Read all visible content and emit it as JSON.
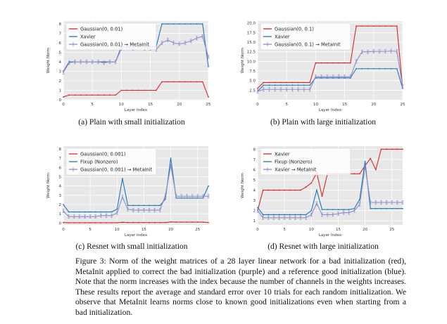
{
  "caption": "Figure 3: Norm of the weight matrices of a 28 layer linear network for a bad initialization (red), MetaInit applied to correct the bad initialization (purple) and a reference good initialization (blue). Note that the norm increases with the index because the number of channels in the weights increases. These results report the average and standard error over 10 trials for each random initialization. We observe that MetaInit learns norms close to known good initializations even when starting from a bad initialization.",
  "colors": {
    "red": "#d62728",
    "blue": "#1f77b4",
    "purple": "#8c8cc8",
    "background": "#e8e8e8"
  },
  "chart_data": [
    {
      "type": "line",
      "subcaption": "(a) Plain with small initialization",
      "xlabel": "Layer Index",
      "ylabel": "Weight Norm",
      "xlim": [
        0,
        25
      ],
      "ylim": [
        0,
        8.3
      ],
      "xticks": [
        0,
        5,
        10,
        15,
        20,
        25
      ],
      "yticks": [
        0,
        1,
        2,
        3,
        4,
        5,
        6,
        7,
        8
      ],
      "legend_position": "top-left",
      "x": [
        0,
        1,
        2,
        3,
        4,
        5,
        6,
        7,
        8,
        9,
        10,
        11,
        12,
        13,
        14,
        15,
        16,
        17,
        18,
        19,
        20,
        21,
        22,
        23,
        24,
        25
      ],
      "series": [
        {
          "name": "Gaussian(0, 0.01)",
          "color": "#d62728",
          "values": [
            0.3,
            0.5,
            0.5,
            0.5,
            0.5,
            0.5,
            0.5,
            0.5,
            0.5,
            0.5,
            1.0,
            1.0,
            1.0,
            1.0,
            1.0,
            1.0,
            1.0,
            1.9,
            1.9,
            1.9,
            1.9,
            1.9,
            1.9,
            1.9,
            1.9,
            0.3
          ]
        },
        {
          "name": "Xavier",
          "color": "#1f77b4",
          "values": [
            3.0,
            4.0,
            4.0,
            4.0,
            4.0,
            4.0,
            4.0,
            4.0,
            4.0,
            4.0,
            5.6,
            5.6,
            5.6,
            5.6,
            5.6,
            5.6,
            5.6,
            8.0,
            8.0,
            8.0,
            8.0,
            8.0,
            8.0,
            8.0,
            8.0,
            3.5
          ]
        },
        {
          "name": "Gaussian(0, 0.01) → MetaInit",
          "color": "#8c8cc8",
          "errorbars": true,
          "values": [
            2.9,
            3.9,
            4.0,
            4.0,
            4.0,
            4.0,
            4.0,
            3.9,
            4.0,
            4.0,
            5.4,
            5.5,
            5.4,
            5.5,
            5.4,
            5.4,
            5.3,
            6.0,
            6.3,
            6.0,
            5.9,
            6.0,
            6.2,
            6.5,
            6.7,
            4.5
          ]
        }
      ]
    },
    {
      "type": "line",
      "subcaption": "(b) Plain with large initialization",
      "xlabel": "Layer Index",
      "ylabel": "Weight Norm",
      "xlim": [
        0,
        25
      ],
      "ylim": [
        0,
        20.5
      ],
      "xticks": [
        0,
        5,
        10,
        15,
        20,
        25
      ],
      "yticks": [
        2.5,
        5.0,
        7.5,
        10.0,
        12.5,
        15.0,
        17.5,
        20.0
      ],
      "ytick_labels": [
        "2.5",
        "5.0",
        "7.5",
        "10.0",
        "12.5",
        "15.0",
        "17.5",
        "20.0"
      ],
      "legend_position": "top-left",
      "x": [
        0,
        1,
        2,
        3,
        4,
        5,
        6,
        7,
        8,
        9,
        10,
        11,
        12,
        13,
        14,
        15,
        16,
        17,
        18,
        19,
        20,
        21,
        22,
        23,
        24,
        25
      ],
      "series": [
        {
          "name": "Gaussian(0, 0.1)",
          "color": "#d62728",
          "values": [
            3.0,
            4.5,
            4.5,
            4.5,
            4.5,
            4.5,
            4.5,
            4.5,
            4.5,
            4.5,
            9.6,
            9.6,
            9.6,
            9.6,
            9.6,
            9.6,
            9.6,
            19.2,
            19.2,
            19.2,
            19.2,
            19.2,
            19.2,
            19.2,
            19.2,
            3.0
          ]
        },
        {
          "name": "Xavier",
          "color": "#1f77b4",
          "values": [
            2.2,
            3.8,
            3.8,
            3.8,
            3.8,
            3.8,
            3.8,
            3.8,
            3.8,
            3.8,
            5.7,
            5.7,
            5.7,
            5.7,
            5.7,
            5.7,
            5.7,
            8.1,
            8.1,
            8.1,
            8.1,
            8.1,
            8.1,
            8.1,
            8.1,
            3.0
          ]
        },
        {
          "name": "Gaussian(0, 0.1) → MetaInit",
          "color": "#8c8cc8",
          "errorbars": true,
          "values": [
            2.2,
            2.7,
            2.7,
            2.7,
            2.7,
            2.7,
            2.7,
            2.7,
            2.7,
            2.7,
            6.0,
            6.0,
            6.0,
            6.0,
            6.0,
            6.0,
            6.0,
            10.0,
            12.5,
            12.5,
            12.6,
            12.6,
            12.6,
            12.7,
            12.6,
            3.5
          ]
        }
      ]
    },
    {
      "type": "line",
      "subcaption": "(c) Resnet with small initialization",
      "xlabel": "Layer Index",
      "ylabel": "Weight Norm",
      "xlim": [
        0,
        27
      ],
      "ylim": [
        -0.2,
        8.3
      ],
      "xticks": [
        0,
        5,
        10,
        15,
        20,
        25
      ],
      "yticks": [
        0,
        1,
        2,
        3,
        4,
        5,
        6,
        7,
        8
      ],
      "legend_position": "top-left",
      "x": [
        0,
        1,
        2,
        3,
        4,
        5,
        6,
        7,
        8,
        9,
        10,
        11,
        12,
        13,
        14,
        15,
        16,
        17,
        18,
        19,
        20,
        21,
        22,
        23,
        24,
        25,
        26,
        27
      ],
      "series": [
        {
          "name": "Gaussian(0, 0.001)",
          "color": "#d62728",
          "values": [
            0.05,
            0.03,
            0.03,
            0.03,
            0.03,
            0.03,
            0.03,
            0.03,
            0.03,
            0.03,
            0.03,
            0.08,
            0.05,
            0.05,
            0.05,
            0.05,
            0.05,
            0.05,
            0.05,
            0.05,
            0.12,
            0.1,
            0.1,
            0.1,
            0.1,
            0.1,
            0.1,
            0.05
          ]
        },
        {
          "name": "Fixup (Nonzero)",
          "color": "#1f77b4",
          "values": [
            2.0,
            1.2,
            1.2,
            1.2,
            1.2,
            1.2,
            1.2,
            1.2,
            1.2,
            1.2,
            1.5,
            4.8,
            1.9,
            1.9,
            1.9,
            1.9,
            1.9,
            1.9,
            1.9,
            2.6,
            7.0,
            2.7,
            2.7,
            2.7,
            2.7,
            2.7,
            2.7,
            4.0
          ]
        },
        {
          "name": "Gaussian(0, 0.001) → MetaInit",
          "color": "#8c8cc8",
          "errorbars": true,
          "values": [
            1.3,
            0.7,
            0.7,
            0.7,
            0.7,
            0.7,
            0.7,
            0.8,
            0.8,
            0.8,
            1.1,
            2.8,
            1.5,
            1.4,
            1.4,
            1.4,
            1.4,
            1.4,
            1.4,
            3.0,
            6.2,
            2.9,
            2.9,
            2.9,
            2.9,
            2.9,
            2.9,
            2.9
          ]
        }
      ]
    },
    {
      "type": "line",
      "subcaption": "(d) Resnet with large initialization",
      "xlabel": "Layer Index",
      "ylabel": "Weight Norm",
      "xlim": [
        0,
        27
      ],
      "ylim": [
        0.6,
        8.3
      ],
      "xticks": [
        0,
        5,
        10,
        15,
        20,
        25
      ],
      "yticks": [
        1,
        2,
        3,
        4,
        5,
        6,
        7,
        8
      ],
      "legend_position": "top-left",
      "x": [
        0,
        1,
        2,
        3,
        4,
        5,
        6,
        7,
        8,
        9,
        10,
        11,
        12,
        13,
        14,
        15,
        16,
        17,
        18,
        19,
        20,
        21,
        22,
        23,
        24,
        25,
        26,
        27
      ],
      "series": [
        {
          "name": "Xavier",
          "color": "#d62728",
          "values": [
            2.0,
            4.0,
            4.0,
            4.0,
            4.0,
            4.0,
            4.0,
            4.0,
            4.0,
            4.3,
            4.7,
            5.7,
            3.4,
            5.6,
            5.6,
            5.6,
            5.6,
            5.6,
            5.6,
            5.6,
            6.4,
            7.1,
            6.0,
            8.0,
            8.0,
            8.0,
            8.0,
            8.0
          ]
        },
        {
          "name": "Fixup (Nonzero)",
          "color": "#1f77b4",
          "values": [
            2.3,
            1.6,
            1.6,
            1.6,
            1.6,
            1.6,
            1.6,
            1.6,
            1.6,
            1.6,
            2.0,
            4.0,
            2.1,
            2.1,
            2.1,
            2.1,
            2.1,
            2.1,
            2.2,
            3.1,
            6.8,
            2.2,
            2.2,
            2.2,
            2.2,
            2.2,
            2.2,
            2.2
          ]
        },
        {
          "name": "Xavier → MetaInit",
          "color": "#8c8cc8",
          "errorbars": true,
          "values": [
            2.0,
            1.3,
            1.3,
            1.3,
            1.3,
            1.3,
            1.3,
            1.3,
            1.3,
            1.3,
            1.6,
            2.7,
            1.6,
            1.6,
            1.6,
            1.7,
            1.8,
            1.8,
            2.0,
            2.6,
            6.3,
            2.8,
            2.8,
            2.8,
            2.8,
            2.8,
            2.8,
            2.8
          ]
        }
      ]
    }
  ]
}
